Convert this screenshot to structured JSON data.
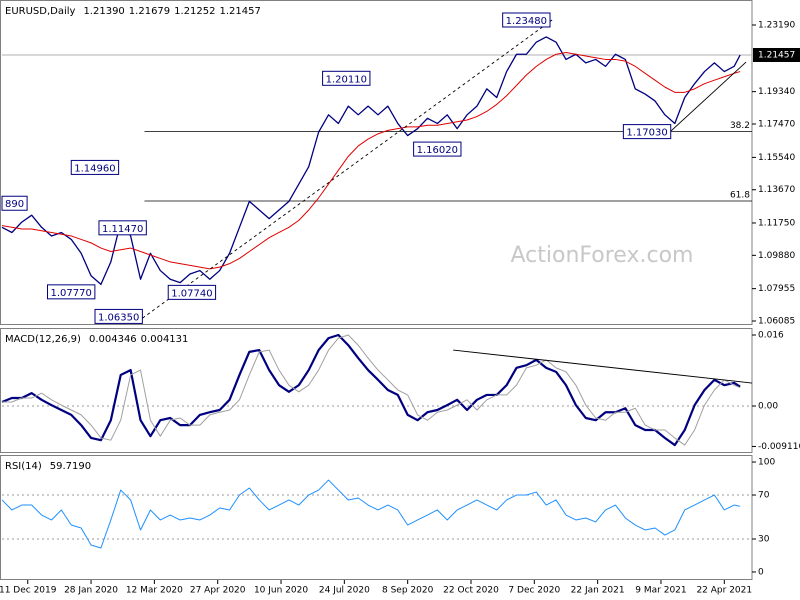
{
  "chart_data": [
    {
      "type": "line",
      "title": "EURUSD,Daily",
      "header_values": [
        "1.21390",
        "1.21679",
        "1.21252",
        "1.21457"
      ],
      "current_label": 3,
      "x": [
        0,
        5,
        10,
        15,
        20,
        25,
        30,
        35,
        40,
        45,
        50,
        55,
        60,
        65,
        70,
        75,
        80,
        85,
        90,
        95,
        100,
        105,
        110,
        115,
        120,
        125,
        130,
        135,
        140,
        145,
        150,
        155,
        160,
        165,
        170,
        175,
        180,
        185,
        190,
        195,
        200,
        205,
        210,
        215,
        220,
        225,
        230,
        235,
        240,
        245,
        250,
        255,
        260,
        265,
        270,
        275,
        280,
        285,
        290,
        295,
        300,
        305,
        310,
        315,
        320,
        325,
        330,
        335,
        340,
        345,
        350,
        355,
        360,
        365,
        370,
        373
      ],
      "xlim": [
        0,
        379
      ],
      "xticks": [
        {
          "value": 13,
          "label": "11 Dec 2019"
        },
        {
          "value": 45,
          "label": "28 Jan 2020"
        },
        {
          "value": 77,
          "label": "12 Mar 2020"
        },
        {
          "value": 109,
          "label": "27 Apr 2020"
        },
        {
          "value": 141,
          "label": "10 Jun 2020"
        },
        {
          "value": 173,
          "label": "24 Jul 2020"
        },
        {
          "value": 205,
          "label": "8 Sep 2020"
        },
        {
          "value": 237,
          "label": "22 Oct 2020"
        },
        {
          "value": 269,
          "label": "7 Dec 2020"
        },
        {
          "value": 301,
          "label": "22 Jan 2021"
        },
        {
          "value": 333,
          "label": "9 Mar 2021"
        },
        {
          "value": 365,
          "label": "22 Apr 2021"
        }
      ],
      "ylim": [
        1.05854,
        1.24635
      ],
      "yticks": [
        {
          "value": 1.2319,
          "label": "1.23190"
        },
        {
          "value": 1.1934,
          "label": "1.19340"
        },
        {
          "value": 1.1747,
          "label": "1.17470"
        },
        {
          "value": 1.1554,
          "label": "1.15540"
        },
        {
          "value": 1.1367,
          "label": "1.13670"
        },
        {
          "value": 1.1175,
          "label": "1.11750"
        },
        {
          "value": 1.0988,
          "label": "1.09880"
        },
        {
          "value": 1.07955,
          "label": "1.07955"
        },
        {
          "value": 1.06085,
          "label": "1.06085"
        }
      ],
      "series": [
        {
          "color": "#000080",
          "line_width": 1.3,
          "values": [
            1.115,
            1.112,
            1.118,
            1.122,
            1.115,
            1.11,
            1.112,
            1.108,
            1.1,
            1.087,
            1.082,
            1.095,
            1.118,
            1.11,
            1.085,
            1.1,
            1.09,
            1.085,
            1.083,
            1.088,
            1.09,
            1.085,
            1.09,
            1.1,
            1.115,
            1.13,
            1.125,
            1.12,
            1.125,
            1.13,
            1.14,
            1.15,
            1.17,
            1.18,
            1.175,
            1.185,
            1.18,
            1.185,
            1.18,
            1.185,
            1.175,
            1.168,
            1.172,
            1.178,
            1.175,
            1.18,
            1.172,
            1.18,
            1.185,
            1.195,
            1.19,
            1.205,
            1.215,
            1.215,
            1.222,
            1.225,
            1.222,
            1.212,
            1.215,
            1.21,
            1.212,
            1.208,
            1.215,
            1.212,
            1.195,
            1.192,
            1.188,
            1.18,
            1.175,
            1.19,
            1.198,
            1.205,
            1.21,
            1.205,
            1.208,
            1.21457
          ]
        },
        {
          "color": "#e00000",
          "line_width": 1,
          "values": [
            1.116,
            1.115,
            1.114,
            1.114,
            1.113,
            1.112,
            1.111,
            1.11,
            1.108,
            1.106,
            1.103,
            1.101,
            1.102,
            1.103,
            1.101,
            1.099,
            1.097,
            1.095,
            1.094,
            1.093,
            1.092,
            1.091,
            1.092,
            1.094,
            1.097,
            1.101,
            1.105,
            1.109,
            1.112,
            1.115,
            1.119,
            1.125,
            1.132,
            1.14,
            1.148,
            1.156,
            1.162,
            1.166,
            1.169,
            1.171,
            1.172,
            1.173,
            1.173,
            1.174,
            1.174,
            1.175,
            1.176,
            1.177,
            1.179,
            1.182,
            1.186,
            1.191,
            1.197,
            1.203,
            1.208,
            1.212,
            1.215,
            1.216,
            1.215,
            1.214,
            1.213,
            1.212,
            1.212,
            1.211,
            1.208,
            1.204,
            1.2,
            1.196,
            1.193,
            1.193,
            1.195,
            1.198,
            1.2,
            1.202,
            1.204,
            1.205
          ]
        }
      ],
      "annotations": [
        {
          "text": "1.23480",
          "x": 253,
          "y": 1.2348
        },
        {
          "text": "1.20110",
          "x": 162,
          "y": 1.2011
        },
        {
          "text": "1.14960",
          "x": 35,
          "y": 1.1496
        },
        {
          "text": "1.11470",
          "x": 49,
          "y": 1.1147
        },
        {
          "text": "1.07770",
          "x": 23,
          "y": 1.0777
        },
        {
          "text": "1.07740",
          "x": 84,
          "y": 1.0774
        },
        {
          "text": "1.06350",
          "x": 47,
          "y": 1.0635
        },
        {
          "text": "1.16020",
          "x": 208,
          "y": 1.1602
        },
        {
          "text": "1.17030",
          "x": 314,
          "y": 1.1703
        },
        {
          "text": "890",
          "x": 0,
          "y": 1.1289
        }
      ],
      "levels": [
        {
          "label": "38.2",
          "x": 72,
          "y": 1.1703
        },
        {
          "label": "61.8",
          "x": 72,
          "y": 1.1302
        }
      ],
      "trendlines": [
        {
          "x": [
            71,
            278
          ],
          "y": [
            1.0625,
            1.2348
          ],
          "dashed": true
        },
        {
          "x": [
            338,
            376
          ],
          "y": [
            1.1706,
            1.2105
          ],
          "dashed": false
        }
      ],
      "watermark": "ActionForex.com"
    },
    {
      "type": "line",
      "title": "MACD(12,26,9)",
      "header_values": [
        "0.004346",
        "0.004131"
      ],
      "x": [
        0,
        5,
        10,
        15,
        20,
        25,
        30,
        35,
        40,
        45,
        50,
        55,
        60,
        65,
        70,
        75,
        80,
        85,
        90,
        95,
        100,
        105,
        110,
        115,
        120,
        125,
        130,
        135,
        140,
        145,
        150,
        155,
        160,
        165,
        170,
        175,
        180,
        185,
        190,
        195,
        200,
        205,
        210,
        215,
        220,
        225,
        230,
        235,
        240,
        245,
        250,
        255,
        260,
        265,
        270,
        275,
        280,
        285,
        290,
        295,
        300,
        305,
        310,
        315,
        320,
        325,
        330,
        335,
        340,
        345,
        350,
        355,
        360,
        365,
        370,
        373
      ],
      "xlim": [
        0,
        379
      ],
      "ylim": [
        -0.01059,
        0.01758
      ],
      "yticks": [
        0.016,
        {
          "value": 0,
          "label": "0.00"
        },
        -0.009116
      ],
      "series": [
        {
          "color": "#000080",
          "line_width": 2.2,
          "values": [
            0.0009,
            0.0018,
            0.0018,
            0.0029,
            0.0014,
            0.0002,
            -0.0009,
            -0.002,
            -0.0043,
            -0.0072,
            -0.0077,
            -0.0032,
            0.007,
            0.0081,
            -0.0032,
            -0.0068,
            -0.0032,
            -0.0027,
            -0.0043,
            -0.0043,
            -0.002,
            -0.0014,
            -0.0009,
            0.0014,
            0.007,
            0.0122,
            0.0126,
            0.0081,
            0.0047,
            0.0032,
            0.0047,
            0.0081,
            0.0126,
            0.0153,
            0.016,
            0.0137,
            0.0108,
            0.0081,
            0.0059,
            0.0036,
            0.0025,
            -0.002,
            -0.0032,
            -0.0014,
            -0.0009,
            0.0002,
            0.0014,
            -0.0009,
            0.0014,
            0.0025,
            0.0025,
            0.0047,
            0.0086,
            0.0092,
            0.0104,
            0.0086,
            0.0077,
            0.0047,
            0.0002,
            -0.0027,
            -0.0032,
            -0.0014,
            -0.0014,
            -0.0005,
            -0.0043,
            -0.0054,
            -0.0054,
            -0.0072,
            -0.0088,
            -0.0054,
            0.0002,
            0.0036,
            0.0059,
            0.0047,
            0.0052,
            0.004346
          ]
        },
        {
          "color": "#a0a0a0",
          "line_width": 1,
          "values": [
            0.0009,
            0.0009,
            0.0018,
            0.0018,
            0.0029,
            0.0014,
            0.0002,
            -0.0009,
            -0.002,
            -0.0043,
            -0.0072,
            -0.0077,
            -0.0032,
            0.007,
            0.0081,
            -0.0032,
            -0.0068,
            -0.0032,
            -0.0027,
            -0.0043,
            -0.0043,
            -0.002,
            -0.0014,
            -0.0009,
            0.0014,
            0.007,
            0.0122,
            0.0126,
            0.0081,
            0.0047,
            0.0032,
            0.0047,
            0.0081,
            0.0126,
            0.0153,
            0.016,
            0.0137,
            0.0108,
            0.0081,
            0.0059,
            0.0036,
            0.0025,
            -0.002,
            -0.0032,
            -0.0014,
            -0.0009,
            0.0002,
            0.0014,
            -0.0009,
            0.0014,
            0.0025,
            0.0025,
            0.0047,
            0.0086,
            0.0092,
            0.0104,
            0.0086,
            0.0077,
            0.0047,
            0.0002,
            -0.0027,
            -0.0032,
            -0.0014,
            -0.0014,
            -0.0005,
            -0.0043,
            -0.0054,
            -0.0054,
            -0.0072,
            -0.0088,
            -0.0054,
            0.0002,
            0.0036,
            0.0059,
            0.0047,
            0.004131
          ]
        }
      ],
      "hlines": [
        0
      ],
      "trendlines": [
        {
          "x": [
            228,
            379
          ],
          "y": [
            0.0126,
            0.00518
          ],
          "dashed": false
        }
      ]
    },
    {
      "type": "line",
      "title": "RSI(14)",
      "header_values": [
        "59.7190"
      ],
      "x": [
        0,
        5,
        10,
        15,
        20,
        25,
        30,
        35,
        40,
        45,
        50,
        55,
        60,
        65,
        70,
        75,
        80,
        85,
        90,
        95,
        100,
        105,
        110,
        115,
        120,
        125,
        130,
        135,
        140,
        145,
        150,
        155,
        160,
        165,
        170,
        175,
        180,
        185,
        190,
        195,
        200,
        205,
        210,
        215,
        220,
        225,
        230,
        235,
        240,
        245,
        250,
        255,
        260,
        265,
        270,
        275,
        280,
        285,
        290,
        295,
        300,
        305,
        310,
        315,
        320,
        325,
        330,
        335,
        340,
        345,
        350,
        355,
        360,
        365,
        370,
        373
      ],
      "xlim": [
        0,
        379
      ],
      "ylim": [
        -7.3,
        106.4
      ],
      "yticks": [
        100,
        70,
        30,
        0
      ],
      "series": [
        {
          "color": "#1e90ff",
          "line_width": 1,
          "values": [
            65.5,
            56.4,
            60.9,
            60.9,
            51.8,
            47.3,
            56.4,
            42.7,
            40,
            24.5,
            21.8,
            47.3,
            74.5,
            65.5,
            38.2,
            56.4,
            47.3,
            51.8,
            47.3,
            49.1,
            47.3,
            51.8,
            58.2,
            56.4,
            70,
            76.4,
            65.5,
            56.4,
            60.9,
            65.5,
            60.9,
            70,
            74.5,
            83.6,
            74.5,
            65.5,
            67.3,
            60.9,
            56.4,
            60.9,
            56.4,
            42.7,
            47.3,
            51.8,
            56.4,
            47.3,
            56.4,
            60.9,
            65.5,
            60.9,
            56.4,
            65.5,
            70,
            70,
            72.7,
            60.9,
            65.5,
            51.8,
            47.3,
            49.1,
            45.5,
            56.4,
            60.9,
            49.1,
            42.7,
            38.2,
            40,
            33.6,
            38.2,
            56.4,
            60.9,
            65.5,
            70,
            56.4,
            60.9,
            59.719
          ]
        }
      ],
      "hlines_dashed": [
        70,
        30
      ]
    }
  ]
}
